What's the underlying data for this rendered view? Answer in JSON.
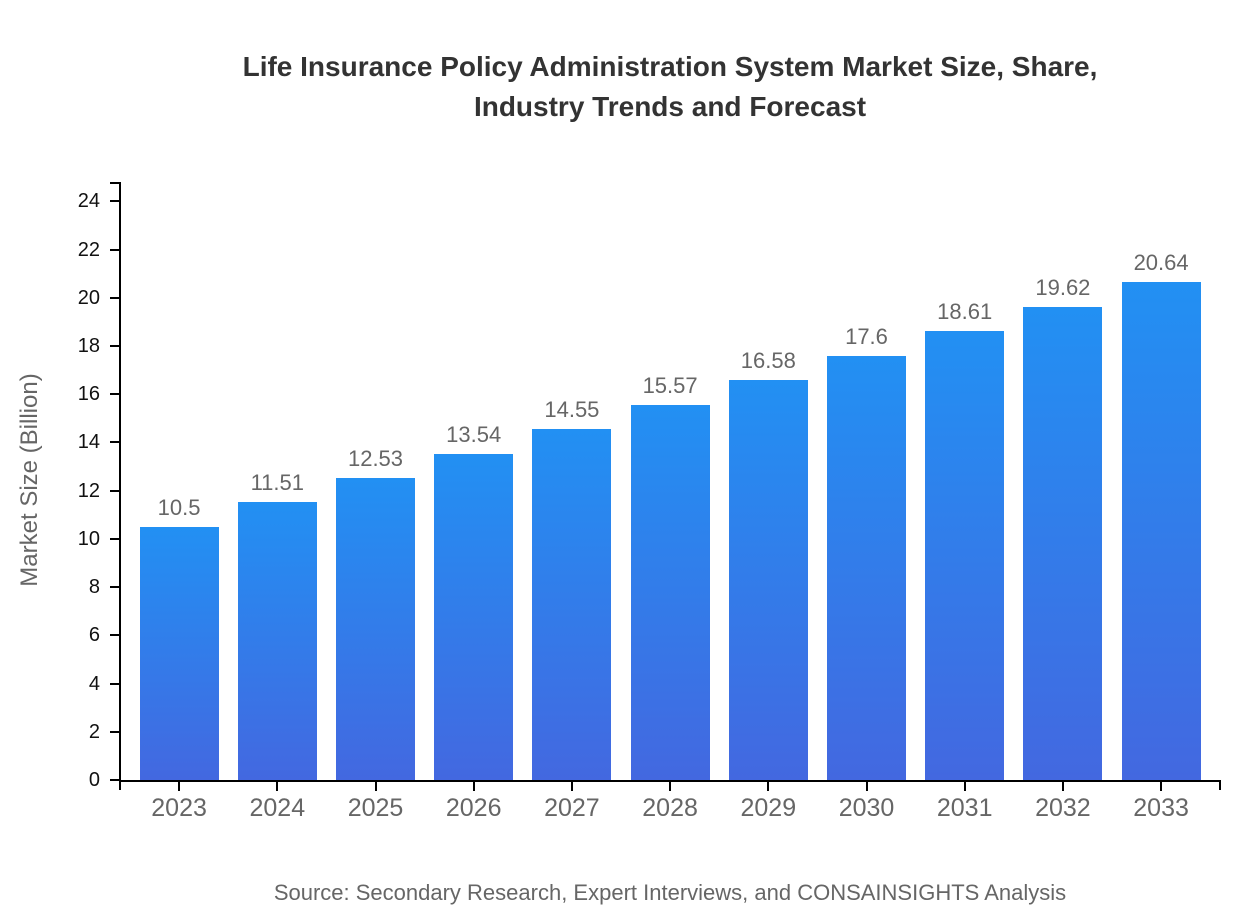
{
  "chart_data": {
    "type": "bar",
    "title": "Life Insurance Policy Administration System Market Size, Share,\nIndustry Trends and Forecast",
    "xlabel": "",
    "ylabel": "Market Size (Billion)",
    "categories": [
      "2023",
      "2024",
      "2025",
      "2026",
      "2027",
      "2028",
      "2029",
      "2030",
      "2031",
      "2032",
      "2033"
    ],
    "values": [
      10.5,
      11.51,
      12.53,
      13.54,
      14.55,
      15.57,
      16.58,
      17.6,
      18.61,
      19.62,
      20.64
    ],
    "value_labels": [
      "10.5",
      "11.51",
      "12.53",
      "13.54",
      "14.55",
      "15.57",
      "16.58",
      "17.6",
      "18.61",
      "19.62",
      "20.64"
    ],
    "yticks": [
      0,
      2,
      4,
      6,
      8,
      10,
      12,
      14,
      16,
      18,
      20,
      22,
      24
    ],
    "ylim": [
      0,
      24.8
    ],
    "grid": false,
    "legend": "none",
    "colors": {
      "bar_gradient_top": "#2290F3",
      "bar_gradient_bottom": "#4368E0",
      "axis": "#000000",
      "y_tick_label": "#111111",
      "x_tick_label": "#666666",
      "value_label": "#666666",
      "title": "#333333",
      "axis_title": "#666666"
    }
  },
  "source_note": "Source: Secondary Research, Expert Interviews, and CONSAINSIGHTS Analysis"
}
